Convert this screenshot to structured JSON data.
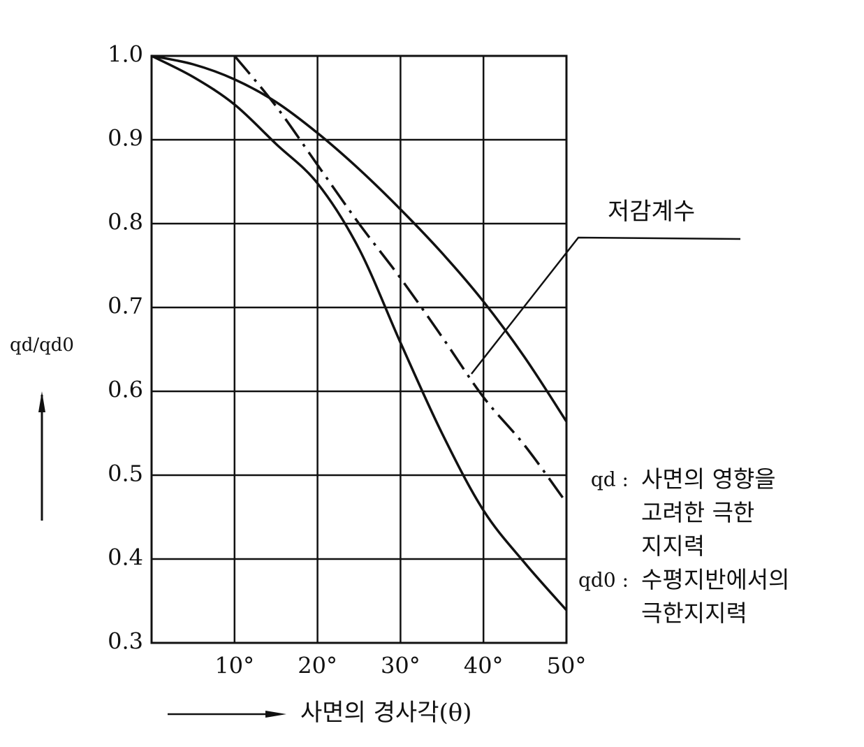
{
  "chart_data": {
    "type": "line",
    "y_label": "qd/qd0",
    "x_label": "사면의 경사각(θ)",
    "annotation": "저감계수",
    "notes": [
      {
        "symbol": "qd :",
        "lines": [
          "사면의 영향을",
          "고려한 극한",
          "지지력"
        ]
      },
      {
        "symbol": "qd0 :",
        "lines": [
          "수평지반에서의",
          "극한지지력"
        ]
      }
    ],
    "x": [
      0,
      5,
      10,
      15,
      20,
      25,
      30,
      35,
      40,
      45,
      50
    ],
    "series": [
      {
        "color": "#111111",
        "linestyle": "solid",
        "values": [
          1.0,
          0.99,
          0.972,
          0.945,
          0.908,
          0.865,
          0.817,
          0.765,
          0.707,
          0.64,
          0.564
        ]
      },
      {
        "color": "#111111",
        "linestyle": "solid",
        "values": [
          1.0,
          0.975,
          0.942,
          0.895,
          0.848,
          0.77,
          0.658,
          0.55,
          0.458,
          0.395,
          0.339
        ]
      },
      {
        "color": "#111111",
        "linestyle": "dashdot",
        "values": [
          null,
          null,
          1.0,
          0.94,
          0.87,
          0.8,
          0.735,
          0.665,
          0.593,
          0.535,
          0.467
        ]
      }
    ],
    "xlim": [
      0,
      50
    ],
    "xticks": [
      {
        "value": 10,
        "label": "10°"
      },
      {
        "value": 20,
        "label": "20°"
      },
      {
        "value": 30,
        "label": "30°"
      },
      {
        "value": 40,
        "label": "40°"
      },
      {
        "value": 50,
        "label": "50°"
      }
    ],
    "ylim": [
      0.3,
      1.0
    ],
    "yticks": [
      {
        "value": 1,
        "label": "1.0"
      },
      0.9,
      0.8,
      0.7,
      0.6,
      0.5,
      0.4,
      0.3
    ],
    "grid": true
  }
}
